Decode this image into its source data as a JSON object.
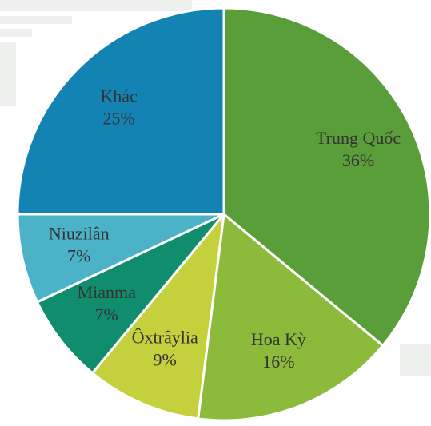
{
  "chart_data": {
    "type": "pie",
    "categories": [
      "Trung Quốc",
      "Hoa Kỳ",
      "Ôxtrâylia",
      "Mianma",
      "Niuzilân",
      "Khác"
    ],
    "values": [
      36,
      16,
      9,
      7,
      7,
      25
    ],
    "value_labels": [
      "36%",
      "16%",
      "9%",
      "7%",
      "7%",
      "25%"
    ],
    "colors": [
      "#5a9e3a",
      "#8cba3a",
      "#c4d03c",
      "#0f8d6c",
      "#4bb2c8",
      "#1283b3"
    ]
  }
}
